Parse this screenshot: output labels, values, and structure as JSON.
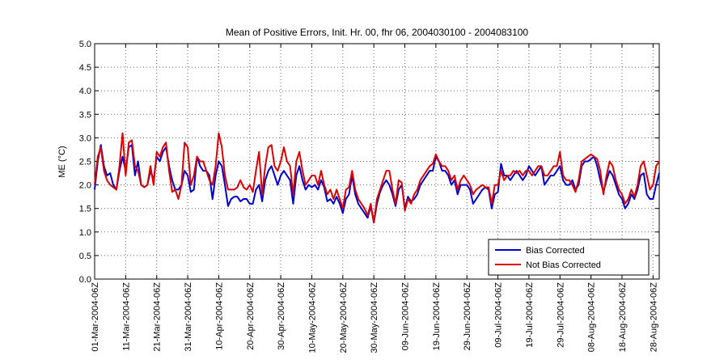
{
  "chart_data": {
    "type": "line",
    "title": "Mean of Positive Errors, Init. Hr. 00, fhr 06, 2004030100 - 2004083100",
    "ylabel": "ME (°C)",
    "x": [
      "2004-03-01",
      "2004-03-02",
      "2004-03-03",
      "2004-03-04",
      "2004-03-05",
      "2004-03-06",
      "2004-03-07",
      "2004-03-08",
      "2004-03-09",
      "2004-03-10",
      "2004-03-11",
      "2004-03-12",
      "2004-03-13",
      "2004-03-14",
      "2004-03-15",
      "2004-03-16",
      "2004-03-17",
      "2004-03-18",
      "2004-03-19",
      "2004-03-20",
      "2004-03-21",
      "2004-03-22",
      "2004-03-23",
      "2004-03-24",
      "2004-03-25",
      "2004-03-26",
      "2004-03-27",
      "2004-03-28",
      "2004-03-29",
      "2004-03-30",
      "2004-03-31",
      "2004-04-01",
      "2004-04-02",
      "2004-04-03",
      "2004-04-04",
      "2004-04-05",
      "2004-04-06",
      "2004-04-07",
      "2004-04-08",
      "2004-04-09",
      "2004-04-10",
      "2004-04-11",
      "2004-04-12",
      "2004-04-13",
      "2004-04-14",
      "2004-04-15",
      "2004-04-16",
      "2004-04-17",
      "2004-04-18",
      "2004-04-19",
      "2004-04-20",
      "2004-04-21",
      "2004-04-22",
      "2004-04-23",
      "2004-04-24",
      "2004-04-25",
      "2004-04-26",
      "2004-04-27",
      "2004-04-28",
      "2004-04-29",
      "2004-04-30",
      "2004-05-01",
      "2004-05-02",
      "2004-05-03",
      "2004-05-04",
      "2004-05-05",
      "2004-05-06",
      "2004-05-07",
      "2004-05-08",
      "2004-05-09",
      "2004-05-10",
      "2004-05-11",
      "2004-05-12",
      "2004-05-13",
      "2004-05-14",
      "2004-05-15",
      "2004-05-16",
      "2004-05-17",
      "2004-05-18",
      "2004-05-19",
      "2004-05-20",
      "2004-05-21",
      "2004-05-22",
      "2004-05-23",
      "2004-05-24",
      "2004-05-25",
      "2004-05-26",
      "2004-05-27",
      "2004-05-28",
      "2004-05-29",
      "2004-05-30",
      "2004-05-31",
      "2004-06-01",
      "2004-06-02",
      "2004-06-03",
      "2004-06-04",
      "2004-06-05",
      "2004-06-06",
      "2004-06-07",
      "2004-06-08",
      "2004-06-09",
      "2004-06-10",
      "2004-06-11",
      "2004-06-12",
      "2004-06-13",
      "2004-06-14",
      "2004-06-15",
      "2004-06-16",
      "2004-06-17",
      "2004-06-18",
      "2004-06-19",
      "2004-06-20",
      "2004-06-21",
      "2004-06-22",
      "2004-06-23",
      "2004-06-24",
      "2004-06-25",
      "2004-06-26",
      "2004-06-27",
      "2004-06-28",
      "2004-06-29",
      "2004-06-30",
      "2004-07-01",
      "2004-07-02",
      "2004-07-03",
      "2004-07-04",
      "2004-07-05",
      "2004-07-06",
      "2004-07-07",
      "2004-07-08",
      "2004-07-09",
      "2004-07-10",
      "2004-07-11",
      "2004-07-12",
      "2004-07-13",
      "2004-07-14",
      "2004-07-15",
      "2004-07-16",
      "2004-07-17",
      "2004-07-18",
      "2004-07-19",
      "2004-07-20",
      "2004-07-21",
      "2004-07-22",
      "2004-07-23",
      "2004-07-24",
      "2004-07-25",
      "2004-07-26",
      "2004-07-27",
      "2004-07-28",
      "2004-07-29",
      "2004-07-30",
      "2004-07-31",
      "2004-08-01",
      "2004-08-02",
      "2004-08-03",
      "2004-08-04",
      "2004-08-05",
      "2004-08-06",
      "2004-08-07",
      "2004-08-08",
      "2004-08-09",
      "2004-08-10",
      "2004-08-11",
      "2004-08-12",
      "2004-08-13",
      "2004-08-14",
      "2004-08-15",
      "2004-08-16",
      "2004-08-17",
      "2004-08-18",
      "2004-08-19",
      "2004-08-20",
      "2004-08-21",
      "2004-08-22",
      "2004-08-23",
      "2004-08-24",
      "2004-08-25",
      "2004-08-26",
      "2004-08-27",
      "2004-08-28",
      "2004-08-29",
      "2004-08-30"
    ],
    "series": [
      {
        "name": "Bias Corrected",
        "color": "#0000cc",
        "values": [
          1.9,
          2.5,
          2.85,
          2.4,
          2.2,
          2.25,
          2.0,
          1.9,
          2.3,
          2.6,
          2.3,
          2.8,
          2.85,
          2.2,
          2.5,
          2.0,
          1.95,
          2.0,
          2.3,
          2.1,
          2.6,
          2.5,
          2.7,
          2.8,
          2.4,
          2.1,
          1.9,
          1.9,
          2.0,
          2.3,
          2.2,
          1.85,
          1.9,
          2.6,
          2.4,
          2.3,
          2.3,
          2.2,
          1.7,
          2.2,
          2.5,
          2.4,
          2.0,
          1.55,
          1.7,
          1.75,
          1.75,
          1.65,
          1.7,
          1.7,
          1.6,
          1.6,
          1.9,
          2.0,
          1.65,
          2.1,
          2.3,
          2.4,
          2.2,
          2.0,
          2.2,
          2.3,
          2.2,
          2.1,
          1.6,
          2.2,
          2.4,
          2.1,
          1.9,
          2.0,
          1.95,
          2.0,
          1.9,
          2.1,
          1.95,
          1.65,
          1.7,
          1.6,
          1.75,
          1.6,
          1.4,
          1.7,
          1.8,
          2.2,
          1.8,
          1.6,
          1.5,
          1.4,
          1.3,
          1.55,
          1.2,
          1.6,
          1.85,
          2.0,
          2.1,
          2.0,
          1.8,
          1.55,
          1.9,
          2.0,
          1.5,
          1.75,
          1.65,
          1.7,
          1.8,
          2.0,
          2.1,
          2.2,
          2.3,
          2.3,
          2.6,
          2.5,
          2.3,
          2.3,
          2.2,
          2.0,
          2.1,
          1.8,
          2.0,
          2.0,
          2.0,
          1.9,
          1.6,
          1.7,
          1.8,
          1.9,
          1.95,
          1.9,
          1.5,
          1.8,
          1.85,
          2.45,
          2.2,
          2.2,
          2.1,
          2.2,
          2.3,
          2.2,
          2.1,
          2.2,
          2.4,
          2.3,
          2.2,
          2.3,
          2.4,
          2.0,
          2.1,
          2.2,
          2.2,
          2.3,
          2.4,
          2.1,
          2.0,
          2.0,
          2.1,
          1.9,
          2.0,
          2.4,
          2.5,
          2.5,
          2.55,
          2.6,
          2.4,
          2.1,
          1.85,
          2.1,
          2.3,
          2.2,
          2.0,
          1.8,
          1.7,
          1.5,
          1.6,
          1.8,
          1.7,
          1.9,
          2.2,
          2.25,
          1.8,
          1.7,
          1.7,
          2.0,
          2.25
        ]
      },
      {
        "name": "Not Bias Corrected",
        "color": "#dd0000",
        "values": [
          2.0,
          2.6,
          2.8,
          2.3,
          2.1,
          2.0,
          1.95,
          1.9,
          2.4,
          3.1,
          2.2,
          2.9,
          2.95,
          2.4,
          2.3,
          2.0,
          1.95,
          2.0,
          2.4,
          2.0,
          2.7,
          2.6,
          2.8,
          2.9,
          2.3,
          1.85,
          1.9,
          1.7,
          2.0,
          2.9,
          2.8,
          2.0,
          2.2,
          2.6,
          2.5,
          2.5,
          2.3,
          2.1,
          2.0,
          2.4,
          3.1,
          2.8,
          2.2,
          1.9,
          1.9,
          1.9,
          1.95,
          2.1,
          1.95,
          1.9,
          2.0,
          1.85,
          2.3,
          2.7,
          1.8,
          2.4,
          2.8,
          2.85,
          2.4,
          2.3,
          2.5,
          2.8,
          2.5,
          2.4,
          1.8,
          2.5,
          2.7,
          2.3,
          2.0,
          2.1,
          2.2,
          2.2,
          2.0,
          2.3,
          2.0,
          1.8,
          1.9,
          1.7,
          1.9,
          1.7,
          1.5,
          1.9,
          1.95,
          2.3,
          1.9,
          1.7,
          1.6,
          1.5,
          1.35,
          1.6,
          1.2,
          1.7,
          1.9,
          2.1,
          2.3,
          2.3,
          1.9,
          1.6,
          2.1,
          2.05,
          1.45,
          1.7,
          1.6,
          1.8,
          1.9,
          2.1,
          2.2,
          2.3,
          2.4,
          2.45,
          2.65,
          2.5,
          2.4,
          2.4,
          2.3,
          2.1,
          2.2,
          1.9,
          2.1,
          2.2,
          2.1,
          2.0,
          1.8,
          1.9,
          1.95,
          2.0,
          1.95,
          1.95,
          1.6,
          2.0,
          2.0,
          2.3,
          2.1,
          2.2,
          2.2,
          2.3,
          2.25,
          2.3,
          2.2,
          2.3,
          2.3,
          2.2,
          2.3,
          2.4,
          2.4,
          2.2,
          2.2,
          2.3,
          2.4,
          2.4,
          2.7,
          2.2,
          2.1,
          2.1,
          2.0,
          1.85,
          2.1,
          2.5,
          2.55,
          2.6,
          2.65,
          2.6,
          2.55,
          2.3,
          1.8,
          2.2,
          2.5,
          2.4,
          2.1,
          1.9,
          1.8,
          1.6,
          1.7,
          1.9,
          1.75,
          2.0,
          2.4,
          2.5,
          2.2,
          1.9,
          2.0,
          2.4,
          2.5
        ]
      }
    ],
    "xlim": [
      "2004-03-01",
      "2004-08-30"
    ],
    "xticks": [
      {
        "value": "2004-03-01",
        "label": "01-Mar-2004-06Z"
      },
      {
        "value": "2004-03-11",
        "label": "11-Mar-2004-06Z"
      },
      {
        "value": "2004-03-21",
        "label": "21-Mar-2004-06Z"
      },
      {
        "value": "2004-03-31",
        "label": "31-Mar-2004-06Z"
      },
      {
        "value": "2004-04-10",
        "label": "10-Apr-2004-06Z"
      },
      {
        "value": "2004-04-20",
        "label": "20-Apr-2004-06Z"
      },
      {
        "value": "2004-04-30",
        "label": "30-Apr-2004-06Z"
      },
      {
        "value": "2004-05-10",
        "label": "10-May-2004-06Z"
      },
      {
        "value": "2004-05-20",
        "label": "20-May-2004-06Z"
      },
      {
        "value": "2004-05-30",
        "label": "30-May-2004-06Z"
      },
      {
        "value": "2004-06-09",
        "label": "09-Jun-2004-06Z"
      },
      {
        "value": "2004-06-19",
        "label": "19-Jun-2004-06Z"
      },
      {
        "value": "2004-06-29",
        "label": "29-Jun-2004-06Z"
      },
      {
        "value": "2004-07-09",
        "label": "09-Jul-2004-06Z"
      },
      {
        "value": "2004-07-19",
        "label": "19-Jul-2004-06Z"
      },
      {
        "value": "2004-07-29",
        "label": "29-Jul-2004-06Z"
      },
      {
        "value": "2004-08-08",
        "label": "08-Aug-2004-06Z"
      },
      {
        "value": "2004-08-18",
        "label": "18-Aug-2004-06Z"
      },
      {
        "value": "2004-08-28",
        "label": "28-Aug-2004-06Z"
      }
    ],
    "ylim": [
      0,
      5
    ],
    "yticks": [
      {
        "value": 0,
        "label": "0.0"
      },
      0.5,
      {
        "value": 1,
        "label": "1.0"
      },
      1.5,
      {
        "value": 2,
        "label": "2.0"
      },
      2.5,
      {
        "value": 3,
        "label": "3.0"
      },
      3.5,
      {
        "value": 4,
        "label": "4.0"
      },
      4.5,
      {
        "value": 5,
        "label": "5.0"
      }
    ],
    "grid": true,
    "legend": "lower right"
  }
}
